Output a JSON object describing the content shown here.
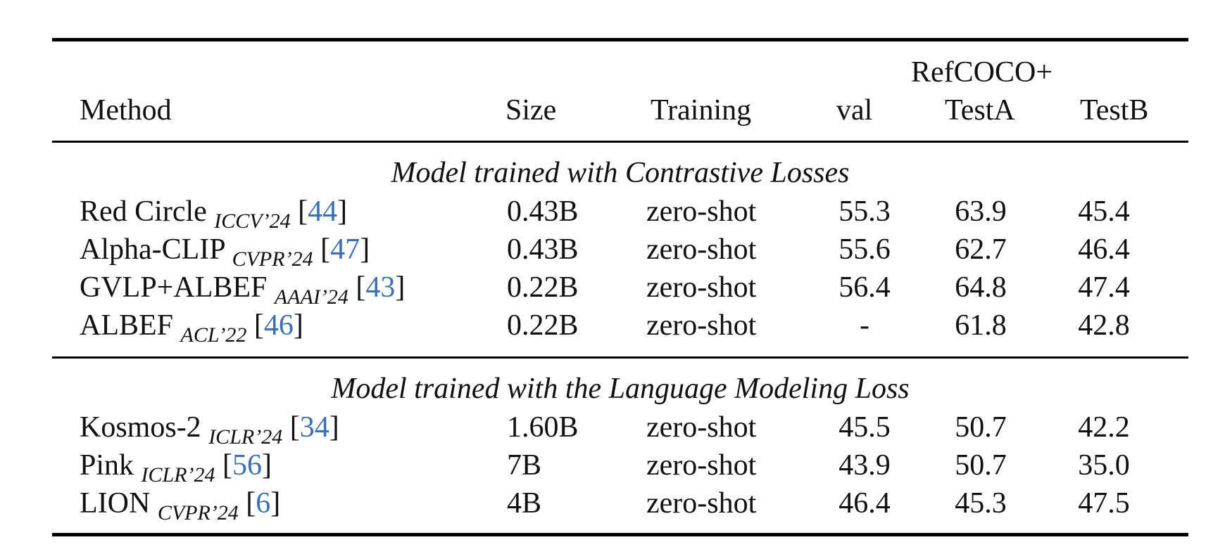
{
  "header": {
    "group": "RefCOCO+",
    "columns": [
      "Method",
      "Size",
      "Training",
      "val",
      "TestA",
      "TestB"
    ]
  },
  "sections": [
    {
      "title": "Model trained with Contrastive Losses",
      "rows": [
        {
          "method": "Red Circle",
          "venue": "ICCV’24",
          "ref": "44",
          "size": "0.43B",
          "training": "zero-shot",
          "val": "55.3",
          "testA": "63.9",
          "testB": "45.4"
        },
        {
          "method": "Alpha-CLIP",
          "venue": "CVPR’24",
          "ref": "47",
          "size": "0.43B",
          "training": "zero-shot",
          "val": "55.6",
          "testA": "62.7",
          "testB": "46.4"
        },
        {
          "method": "GVLP+ALBEF",
          "venue": "AAAI’24",
          "ref": "43",
          "size": "0.22B",
          "training": "zero-shot",
          "val": "56.4",
          "testA": "64.8",
          "testB": "47.4"
        },
        {
          "method": "ALBEF",
          "venue": "ACL’22",
          "ref": "46",
          "size": "0.22B",
          "training": "zero-shot",
          "val": "-",
          "testA": "61.8",
          "testB": "42.8"
        }
      ]
    },
    {
      "title": "Model trained with the Language Modeling Loss",
      "rows": [
        {
          "method": "Kosmos-2",
          "venue": "ICLR’24",
          "ref": "34",
          "size": "1.60B",
          "training": "zero-shot",
          "val": "45.5",
          "testA": "50.7",
          "testB": "42.2"
        },
        {
          "method": "Pink",
          "venue": "ICLR’24",
          "ref": "56",
          "size": "7B",
          "training": "zero-shot",
          "val": "43.9",
          "testA": "50.7",
          "testB": "35.0"
        },
        {
          "method": "LION",
          "venue": "CVPR’24",
          "ref": "6",
          "size": "4B",
          "training": "zero-shot",
          "val": "46.4",
          "testA": "45.3",
          "testB": "47.5"
        }
      ]
    }
  ]
}
